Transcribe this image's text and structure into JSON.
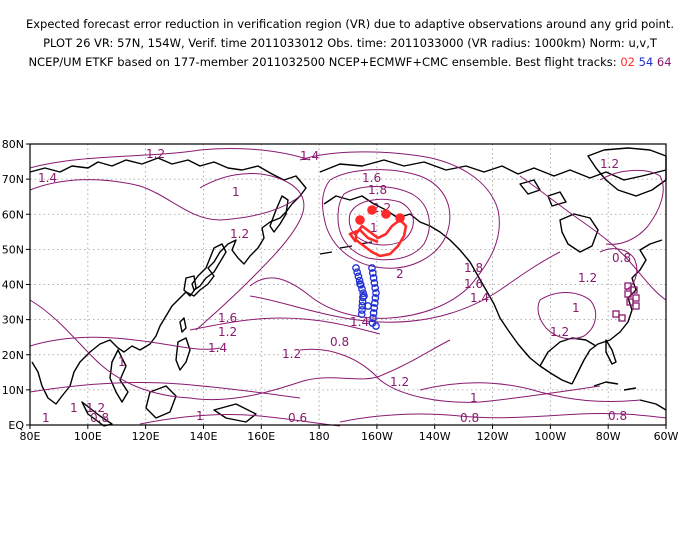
{
  "header": {
    "line1": "Expected forecast error reduction in verification region (VR) due to adaptive observations around any grid point.",
    "line2": "PLOT 26 VR: 57N, 154W, Verif. time 2011033012 Obs. time: 2011033000 (VR radius: 1000km) Norm: u,v,T",
    "line3_prefix": "NCEP/UM ETKF based on 177-member 2011032500 NCEP+ECMWF+CMC ensemble. Best flight tracks:",
    "track_ids": [
      {
        "label": "02",
        "color": "#ff2a2a"
      },
      {
        "label": "54",
        "color": "#1f2fd6"
      },
      {
        "label": "64",
        "color": "#8a1a70"
      }
    ]
  },
  "map": {
    "lon_range": [
      80,
      300
    ],
    "lat_range": [
      0,
      80
    ],
    "lon_ticks": [
      "80E",
      "100E",
      "120E",
      "140E",
      "160E",
      "180",
      "160W",
      "140W",
      "120W",
      "100W",
      "80W",
      "60W"
    ],
    "lat_ticks": [
      "EQ",
      "10N",
      "20N",
      "30N",
      "40N",
      "50N",
      "60N",
      "70N",
      "80N"
    ],
    "contour_color": "#8a1a70",
    "contour_labels": [
      "1.2",
      "1.4",
      "1",
      "1.4",
      "1.6",
      "1.8",
      "2.2",
      "1.2",
      "1",
      "1.2",
      "2",
      "1.8",
      "1.6",
      "1.4",
      "1.6",
      "1.4",
      "1.2",
      "1.4",
      "1.2",
      "0.8",
      "1",
      "1.2",
      "1.2",
      "1",
      "0.8",
      "1.2",
      "1",
      "0.8",
      "1",
      "0.6",
      "1",
      "0.8",
      "0.8",
      "1",
      "1.2"
    ]
  }
}
